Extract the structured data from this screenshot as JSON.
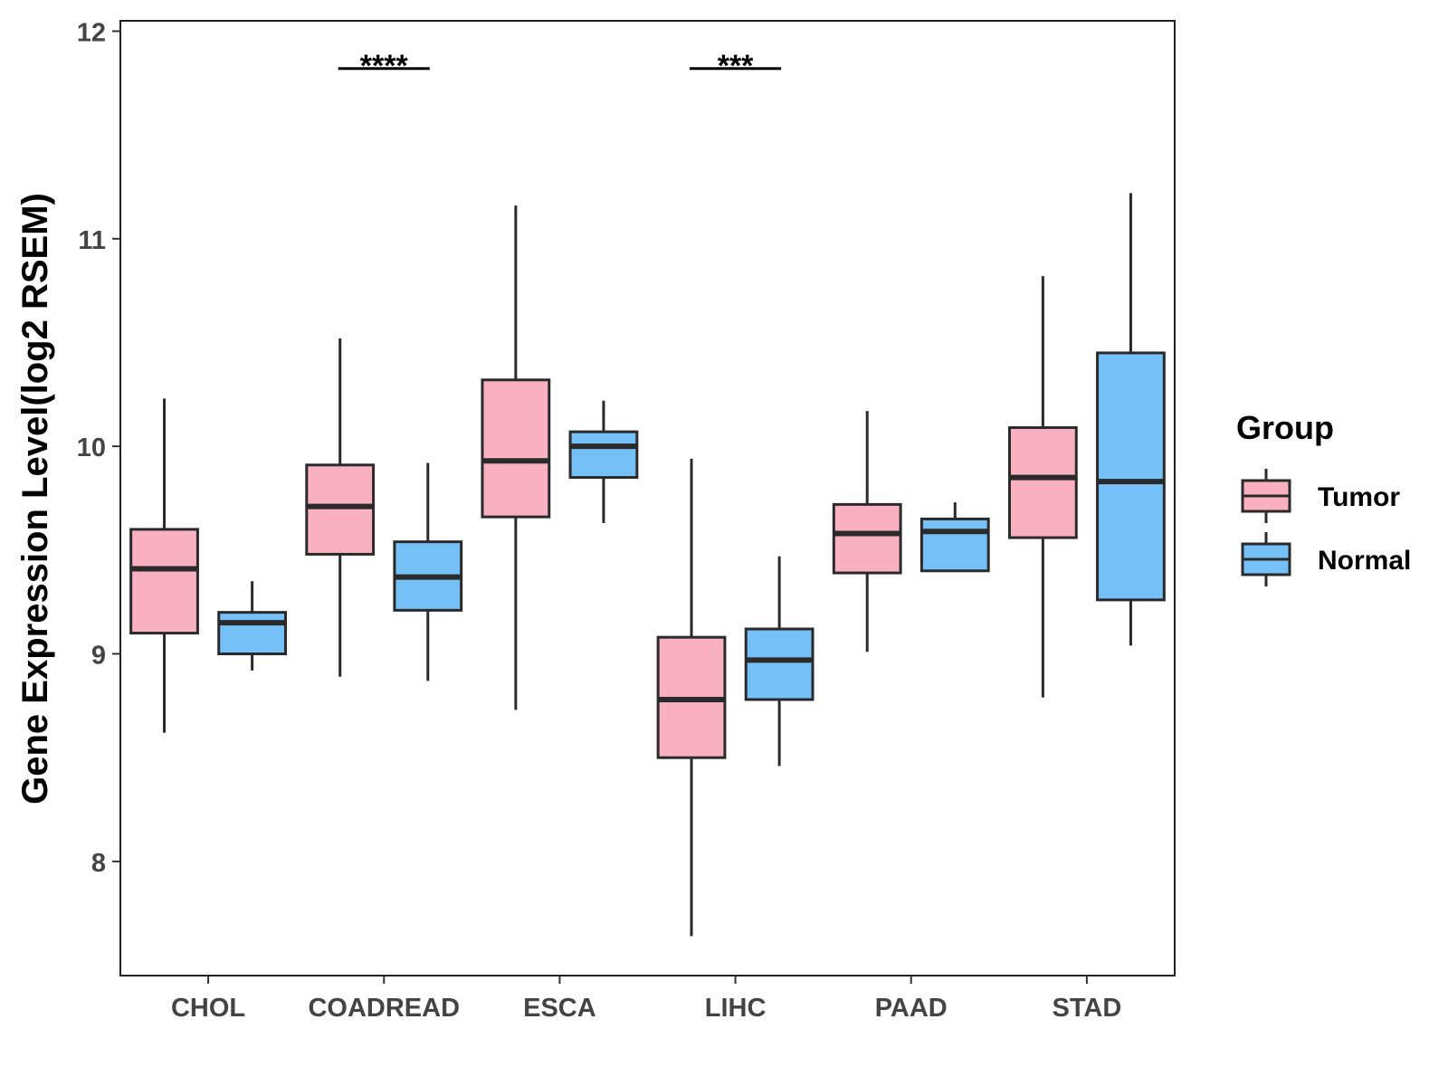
{
  "chart_data": {
    "type": "boxplot",
    "title": "",
    "xlabel": "",
    "ylabel": "Gene Expression Level(log2 RSEM)",
    "ylim": [
      7.45,
      12.05
    ],
    "yticks": [
      8,
      9,
      10,
      11,
      12
    ],
    "grid": false,
    "categories": [
      "CHOL",
      "COADREAD",
      "ESCA",
      "LIHC",
      "PAAD",
      "STAD"
    ],
    "legend": {
      "title": "Group",
      "position": "right",
      "entries": [
        "Tumor",
        "Normal"
      ]
    },
    "colors": {
      "Tumor": "#f9b1c2",
      "Normal": "#75c0f6",
      "stroke": "#2a2a2a"
    },
    "series": [
      {
        "name": "Tumor",
        "boxes": [
          {
            "min": 8.62,
            "q1": 9.1,
            "median": 9.41,
            "q3": 9.6,
            "max": 10.23
          },
          {
            "min": 8.89,
            "q1": 9.48,
            "median": 9.71,
            "q3": 9.91,
            "max": 10.52
          },
          {
            "min": 8.73,
            "q1": 9.66,
            "median": 9.93,
            "q3": 10.32,
            "max": 11.16
          },
          {
            "min": 7.64,
            "q1": 8.5,
            "median": 8.78,
            "q3": 9.08,
            "max": 9.94
          },
          {
            "min": 9.01,
            "q1": 9.39,
            "median": 9.58,
            "q3": 9.72,
            "max": 10.17
          },
          {
            "min": 8.79,
            "q1": 9.56,
            "median": 9.85,
            "q3": 10.09,
            "max": 10.82
          }
        ]
      },
      {
        "name": "Normal",
        "boxes": [
          {
            "min": 8.92,
            "q1": 9.0,
            "median": 9.15,
            "q3": 9.2,
            "max": 9.35
          },
          {
            "min": 8.87,
            "q1": 9.21,
            "median": 9.37,
            "q3": 9.54,
            "max": 9.92
          },
          {
            "min": 9.63,
            "q1": 9.85,
            "median": 10.0,
            "q3": 10.07,
            "max": 10.22
          },
          {
            "min": 8.46,
            "q1": 8.78,
            "median": 8.97,
            "q3": 9.12,
            "max": 9.47
          },
          {
            "min": 9.4,
            "q1": 9.4,
            "median": 9.59,
            "q3": 9.65,
            "max": 9.73
          },
          {
            "min": 9.04,
            "q1": 9.26,
            "median": 9.83,
            "q3": 10.45,
            "max": 11.22
          }
        ]
      }
    ],
    "annotations": [
      {
        "category": "COADREAD",
        "label": "****",
        "y": 11.82
      },
      {
        "category": "LIHC",
        "label": "***",
        "y": 11.82
      }
    ]
  }
}
